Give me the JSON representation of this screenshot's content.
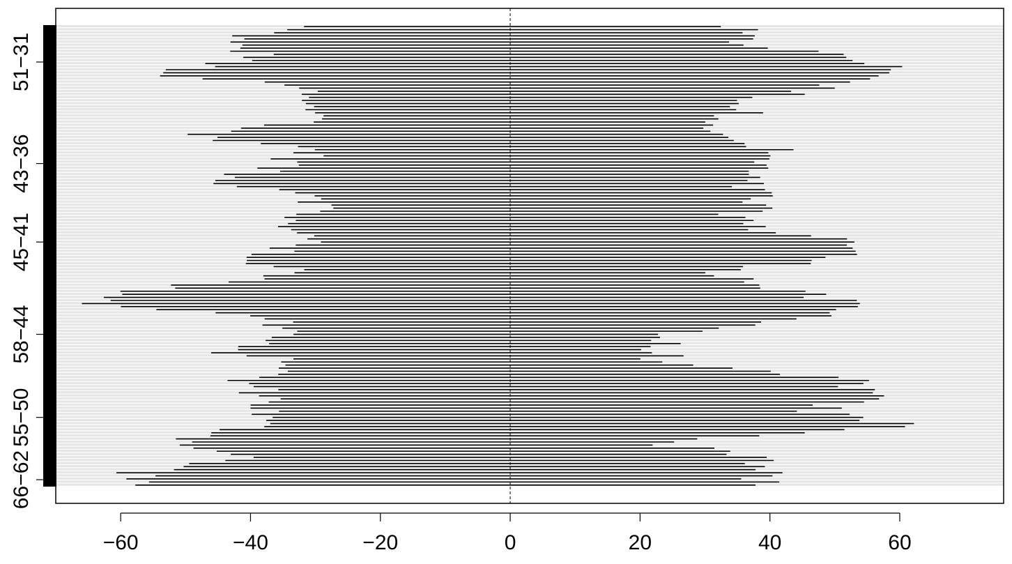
{
  "chart_data": {
    "type": "bar",
    "orientation": "horizontal",
    "description_of_marks": "horizontal interval segments around zero",
    "xlim": [
      -70,
      76
    ],
    "xticks": [
      -60,
      -40,
      -20,
      0,
      20,
      40,
      60
    ],
    "xtick_labels": [
      "−60",
      "−40",
      "−20",
      "0",
      "20",
      "40",
      "60"
    ],
    "ytick_labels": [
      "51−31",
      "43−36",
      "45−41",
      "58−44",
      "55−50",
      "66−62"
    ],
    "ytick_row_fractions": [
      0.08,
      0.3,
      0.47,
      0.67,
      0.85,
      0.985
    ],
    "zero_line": {
      "x": 0,
      "style": "dashed"
    },
    "grid": false,
    "row_count": 150,
    "segments": {
      "sample_every": 5,
      "lower_ends": [
        -33,
        -45,
        -38,
        -56,
        -32,
        -33,
        -27,
        -50,
        -30,
        -35,
        -46,
        -28,
        -30,
        -37,
        -28,
        -43,
        -30,
        -55,
        -64,
        -36,
        -34,
        -45,
        -32,
        -42,
        -37,
        -38,
        -40,
        -50,
        -42,
        -57
      ],
      "upper_ends": [
        34,
        35,
        52,
        61,
        47,
        36,
        35,
        30,
        40,
        38,
        35,
        38,
        36,
        36,
        54,
        50,
        33,
        40,
        52,
        47,
        24,
        22,
        25,
        53,
        55,
        46,
        63,
        22,
        40,
        38
      ]
    },
    "colors": {
      "segments": "#000000",
      "row_background": "#e6e6e6",
      "axis": "#000000"
    }
  }
}
